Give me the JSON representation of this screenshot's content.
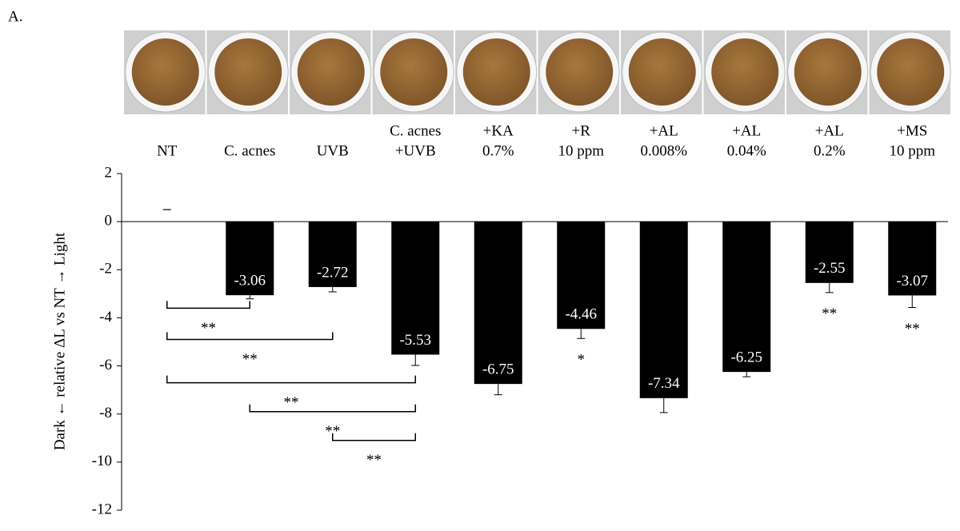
{
  "panel_label": "A.",
  "chart_data": {
    "type": "bar",
    "y_axis_label": "Dark ← relative ΔL vs NT → Light",
    "categories": [
      [
        "NT"
      ],
      [
        "C. acnes"
      ],
      [
        "UVB"
      ],
      [
        "C. acnes",
        "+UVB"
      ],
      [
        "+KA",
        "0.7%"
      ],
      [
        "+R",
        "10 ppm"
      ],
      [
        "+AL",
        "0.008%"
      ],
      [
        "+AL",
        "0.04%"
      ],
      [
        "+AL",
        "0.2%"
      ],
      [
        "+MS",
        "10 ppm"
      ]
    ],
    "values": [
      0,
      -3.06,
      -2.72,
      -5.53,
      -6.75,
      -4.46,
      -7.34,
      -6.25,
      -2.55,
      -3.07
    ],
    "value_labels": [
      null,
      "-3.06",
      "-2.72",
      "-5.53",
      "-6.75",
      "-4.46",
      "-7.34",
      "-6.25",
      "-2.55",
      "-3.07"
    ],
    "errors": [
      0.5,
      0.15,
      0.2,
      0.45,
      0.45,
      0.4,
      0.6,
      0.2,
      0.4,
      0.5
    ],
    "color": "#000000",
    "ylim": [
      -12,
      2
    ],
    "yticks": [
      -12,
      -10,
      -8,
      -6,
      -4,
      -2,
      0,
      2
    ],
    "significance": [
      {
        "pair": [
          0,
          1
        ],
        "label": "**"
      },
      {
        "pair": [
          0,
          2
        ],
        "label": "**"
      },
      {
        "pair": [
          0,
          3
        ],
        "label": "**"
      },
      {
        "pair": [
          1,
          3
        ],
        "label": "**"
      },
      {
        "pair": [
          2,
          3
        ],
        "label": "**"
      }
    ],
    "bar_significance": [
      null,
      null,
      null,
      null,
      null,
      "*",
      null,
      null,
      "**",
      "**"
    ]
  }
}
